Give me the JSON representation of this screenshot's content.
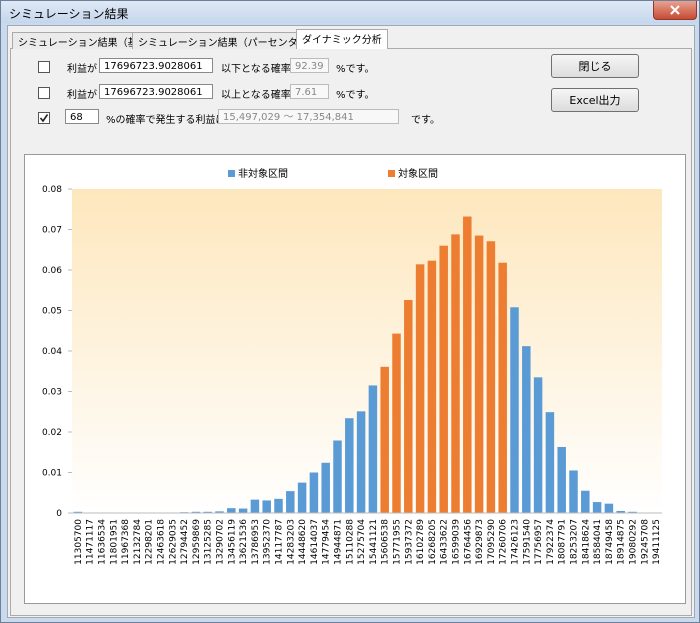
{
  "window": {
    "title": "シミュレーション結果",
    "tabs": [
      "シミュレーション結果（基本）",
      "シミュレーション結果（パーセンタイル）",
      "ダイナミック分析"
    ],
    "active_tab": 2
  },
  "form": {
    "rows": [
      {
        "checked": false,
        "prefix": "利益が",
        "value": "17696723.9028061",
        "label": "以下となる確率は",
        "result": "92.39",
        "suffix": "%です。"
      },
      {
        "checked": false,
        "prefix": "利益が",
        "value": "17696723.9028061",
        "label": "以上となる確率は",
        "result": "7.61",
        "suffix": "%です。"
      }
    ],
    "range_row": {
      "checked": true,
      "value": "68",
      "label": "%の確率で発生する利益は",
      "result": "15,497,029 ～ 17,354,841",
      "suffix": "です。"
    }
  },
  "buttons": [
    "閉じる",
    "Excel出力"
  ],
  "chart_data": {
    "type": "bar",
    "categories": [
      "11305700",
      "11471117",
      "11636534",
      "11801951",
      "11967368",
      "12132784",
      "12298201",
      "12463618",
      "12629035",
      "12794452",
      "12959869",
      "13125285",
      "13290702",
      "13456119",
      "13621536",
      "13786953",
      "13952370",
      "14117787",
      "14283203",
      "14448620",
      "14614037",
      "14779454",
      "14944871",
      "15110288",
      "15275704",
      "15441121",
      "15606538",
      "15771955",
      "15937372",
      "16102789",
      "16268205",
      "16433622",
      "16599039",
      "16764456",
      "16929873",
      "17095290",
      "17260706",
      "17426123",
      "17591540",
      "17756957",
      "17922374",
      "18087791",
      "18253207",
      "18418624",
      "18584041",
      "18749458",
      "18914875",
      "19080292",
      "19245708",
      "19411125"
    ],
    "series": [
      {
        "name": "非対象区間",
        "color": "#5b9bd5",
        "values": [
          0.0003,
          0,
          0,
          0,
          0.0001,
          0.0001,
          0.0001,
          0,
          0,
          0.0002,
          0.0003,
          0.0003,
          0.0004,
          0.0012,
          0.0011,
          0.0033,
          0.0031,
          0.0035,
          0.0054,
          0.0075,
          0.01,
          0.0124,
          0.0179,
          0.0234,
          0.0251,
          0.0315,
          null,
          null,
          null,
          null,
          null,
          null,
          null,
          null,
          null,
          null,
          null,
          0.0508,
          0.0412,
          0.0335,
          0.0249,
          0.0163,
          0.0105,
          0.0055,
          0.0027,
          0.0023,
          0.0005,
          0.0003,
          0.0001,
          0.0001
        ]
      },
      {
        "name": "対象区間",
        "color": "#ed7d31",
        "values": [
          null,
          null,
          null,
          null,
          null,
          null,
          null,
          null,
          null,
          null,
          null,
          null,
          null,
          null,
          null,
          null,
          null,
          null,
          null,
          null,
          null,
          null,
          null,
          null,
          null,
          null,
          0.0361,
          0.0443,
          0.0526,
          0.0614,
          0.0623,
          0.066,
          0.0688,
          0.0732,
          0.0685,
          0.0671,
          0.0618,
          null,
          null,
          null,
          null,
          null,
          null,
          null,
          null,
          null,
          null,
          null,
          null,
          null
        ]
      }
    ],
    "ylim": [
      0,
      0.08
    ],
    "yticks": [
      0,
      0.01,
      0.02,
      0.03,
      0.04,
      0.05,
      0.06,
      0.07,
      0.08
    ],
    "legend": "top"
  }
}
